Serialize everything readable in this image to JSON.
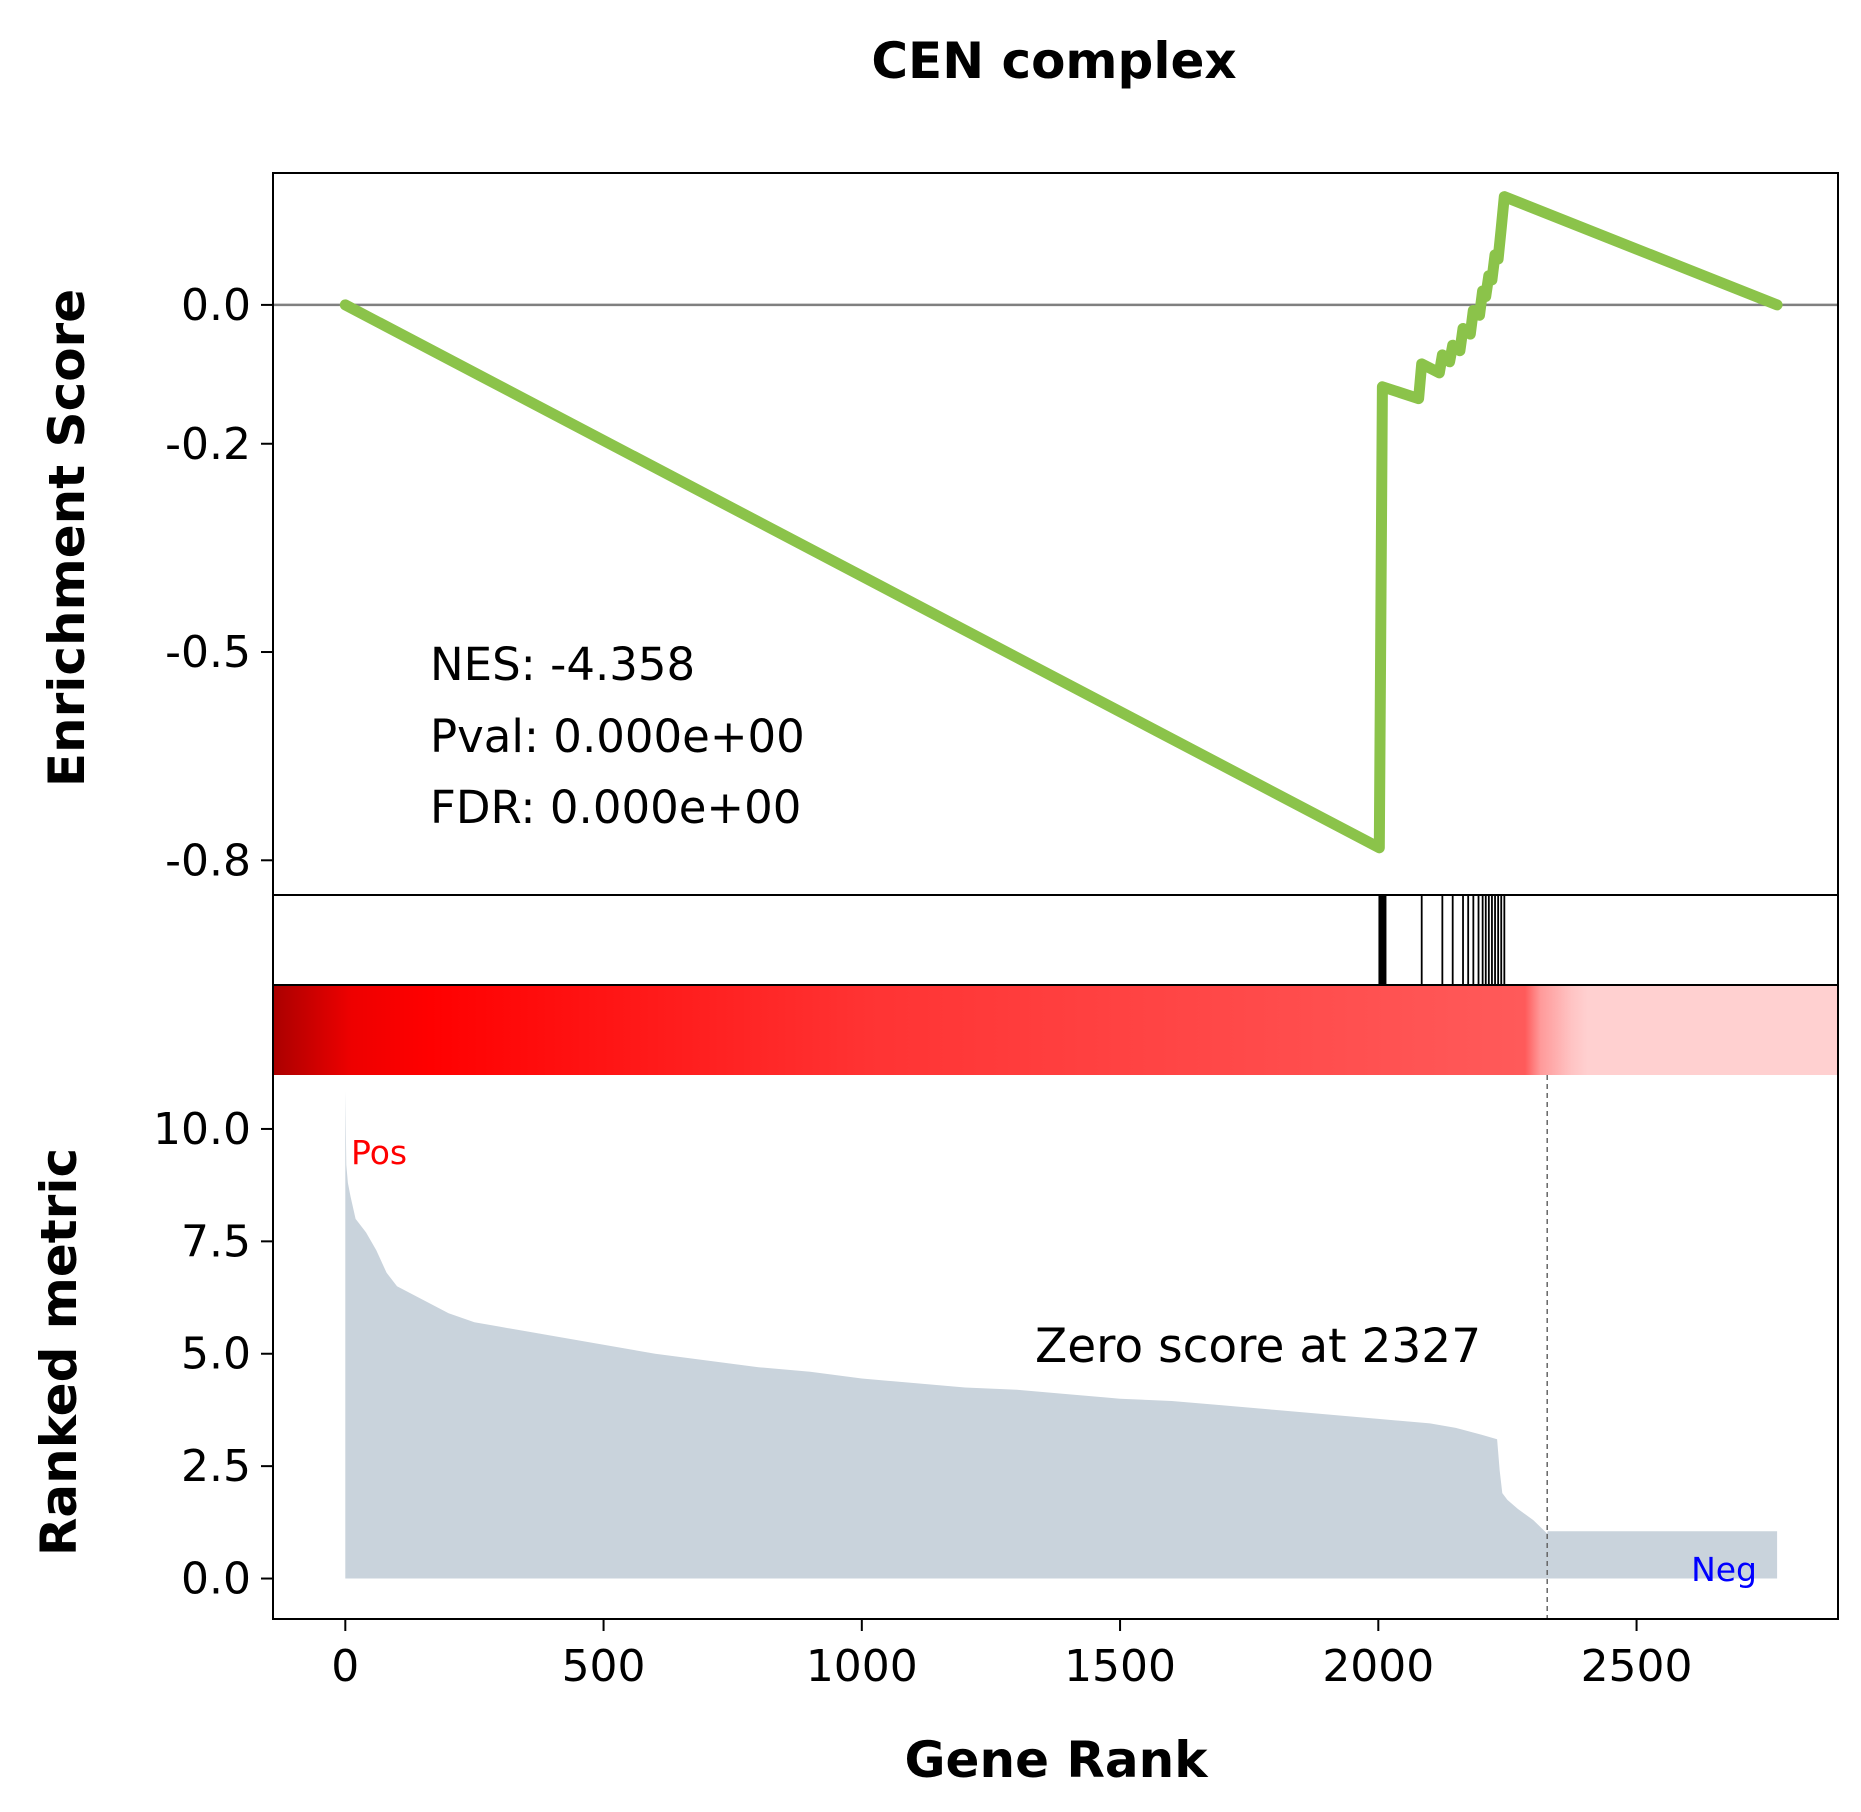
{
  "chart_data": {
    "type": "line",
    "title": "CEN complex",
    "xlabel": "Gene Rank",
    "top_panel": {
      "ylabel": "Enrichment Score",
      "ylim": [
        -0.85,
        0.19
      ],
      "yticks": [
        0.0,
        -0.2,
        -0.5,
        -0.8
      ],
      "ytick_labels": [
        "0.0",
        "-0.2",
        "-0.5",
        "-0.8"
      ],
      "line_color": "#8bc34a",
      "zero_line_color": "#808080",
      "series": [
        {
          "x": [
            0,
            2002,
            2008,
            2078,
            2084,
            2118,
            2124,
            2138,
            2144,
            2158,
            2164,
            2178,
            2184,
            2196,
            2202,
            2208,
            2214,
            2220,
            2226,
            2232,
            2238,
            2244,
            2772
          ],
          "y": [
            0.0,
            -0.782,
            -0.118,
            -0.135,
            -0.085,
            -0.098,
            -0.072,
            -0.082,
            -0.058,
            -0.066,
            -0.034,
            -0.042,
            -0.008,
            -0.015,
            0.02,
            0.012,
            0.042,
            0.036,
            0.072,
            0.066,
            0.11,
            0.156,
            0.0
          ]
        }
      ],
      "annotations": {
        "nes": "NES: -4.358",
        "pval": "Pval: 0.000e+00",
        "fdr": "FDR: 0.000e+00"
      }
    },
    "hits_panel": {
      "hit_ranks": [
        2002,
        2004,
        2006,
        2008,
        2010,
        2012,
        2014,
        2084,
        2124,
        2144,
        2164,
        2174,
        2184,
        2194,
        2202,
        2208,
        2214,
        2220,
        2226,
        2232,
        2238,
        2244
      ]
    },
    "heat_bar": {
      "zero_rank": 2327,
      "colormap": [
        "#aa0000",
        "#ff0000",
        "#ff4d4d",
        "#ffd0d0"
      ]
    },
    "bottom_panel": {
      "ylabel": "Ranked metric",
      "ylim": [
        -0.9,
        11.2
      ],
      "yticks": [
        0.0,
        2.5,
        5.0,
        7.5,
        10.0
      ],
      "ytick_labels": [
        "0.0",
        "2.5",
        "5.0",
        "7.5",
        "10.0"
      ],
      "xlim": [
        -140,
        2890
      ],
      "xticks": [
        0,
        500,
        1000,
        1500,
        2000,
        2500
      ],
      "xtick_labels": [
        "0",
        "500",
        "1000",
        "1500",
        "2000",
        "2500"
      ],
      "fill_color": "#c9d3dc",
      "metric_curve": {
        "x": [
          0,
          2,
          5,
          10,
          20,
          40,
          60,
          80,
          100,
          150,
          200,
          250,
          300,
          350,
          400,
          500,
          600,
          700,
          800,
          900,
          1000,
          1100,
          1200,
          1300,
          1400,
          1500,
          1600,
          1700,
          1800,
          1900,
          2000,
          2100,
          2150,
          2200,
          2230,
          2235,
          2240,
          2250,
          2270,
          2300,
          2327,
          2328,
          2600,
          2772
        ],
        "y": [
          10.85,
          9.2,
          8.8,
          8.5,
          8.0,
          7.7,
          7.3,
          6.8,
          6.5,
          6.2,
          5.9,
          5.7,
          5.6,
          5.5,
          5.4,
          5.2,
          5.0,
          4.85,
          4.7,
          4.6,
          4.45,
          4.35,
          4.25,
          4.2,
          4.1,
          4.0,
          3.95,
          3.85,
          3.75,
          3.65,
          3.55,
          3.45,
          3.35,
          3.2,
          3.1,
          2.4,
          1.9,
          1.75,
          1.55,
          1.3,
          1.0,
          1.05,
          1.05,
          1.05
        ]
      },
      "zero_score_label": "Zero score at 2327",
      "pos_label": "Pos",
      "neg_label": "Neg",
      "pos_color": "#ff0000",
      "neg_color": "#0000ff"
    }
  }
}
